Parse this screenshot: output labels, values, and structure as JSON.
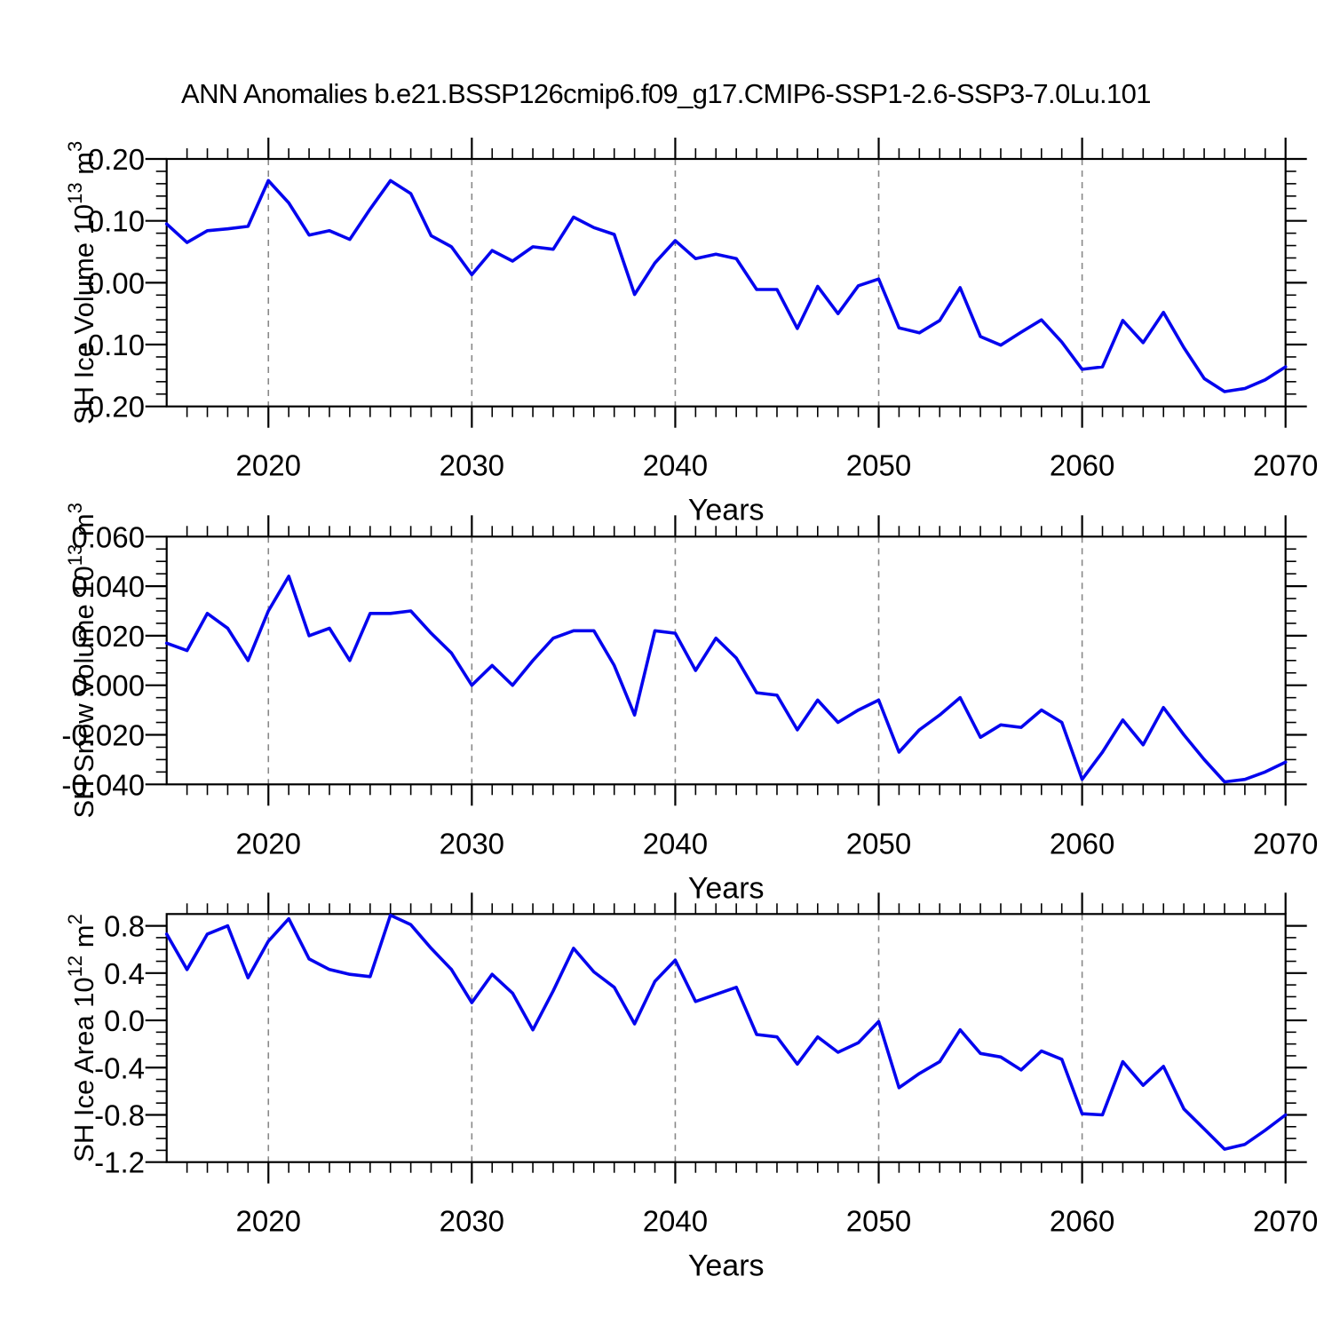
{
  "title": "ANN Anomalies b.e21.BSSP126cmip6.f09_g17.CMIP6-SSP1-2.6-SSP3-7.0Lu.101",
  "colors": {
    "line": "#0505EE",
    "grid": "#888888",
    "axis": "#000000"
  },
  "x_axis": {
    "label": "Years",
    "years_start": 2015,
    "years_end": 2070,
    "tick_values": [
      2020,
      2030,
      2040,
      2050,
      2060,
      2070
    ],
    "tick_labels": [
      "2020",
      "2030",
      "2040",
      "2050",
      "2060",
      "2070"
    ],
    "grid_years": [
      2020,
      2030,
      2040,
      2050,
      2060
    ],
    "years": [
      2015,
      2016,
      2017,
      2018,
      2019,
      2020,
      2021,
      2022,
      2023,
      2024,
      2025,
      2026,
      2027,
      2028,
      2029,
      2030,
      2031,
      2032,
      2033,
      2034,
      2035,
      2036,
      2037,
      2038,
      2039,
      2040,
      2041,
      2042,
      2043,
      2044,
      2045,
      2046,
      2047,
      2048,
      2049,
      2050,
      2051,
      2052,
      2053,
      2054,
      2055,
      2056,
      2057,
      2058,
      2059,
      2060,
      2061,
      2062,
      2063,
      2064,
      2065,
      2066,
      2067,
      2068,
      2069,
      2070
    ]
  },
  "chart_data": [
    {
      "type": "line",
      "name": "sh-ice-volume",
      "ylabel_text": "SH Ice Volume 10^13 m^3",
      "ylabel_parts": [
        {
          "t": "SH Ice Volume 10"
        },
        {
          "t": "13",
          "sup": true
        },
        {
          "t": " m"
        },
        {
          "t": "3",
          "sup": true
        }
      ],
      "ylim": [
        -0.2,
        0.2
      ],
      "ytick_values": [
        0.2,
        0.1,
        0.0,
        -0.1,
        -0.2
      ],
      "ytick_labels": [
        "0.20",
        "0.10",
        "0.00",
        "-0.10",
        "-0.20"
      ],
      "y_minor_step": 0.02,
      "values": [
        0.095,
        0.065,
        0.084,
        0.087,
        0.091,
        0.165,
        0.129,
        0.077,
        0.084,
        0.07,
        0.119,
        0.165,
        0.144,
        0.076,
        0.058,
        0.013,
        0.052,
        0.035,
        0.058,
        0.054,
        0.106,
        0.089,
        0.078,
        -0.019,
        0.032,
        0.068,
        0.039,
        0.046,
        0.039,
        -0.011,
        -0.011,
        -0.074,
        -0.006,
        -0.05,
        -0.005,
        0.006,
        -0.073,
        -0.081,
        -0.061,
        -0.008,
        -0.087,
        -0.101,
        -0.08,
        -0.06,
        -0.096,
        -0.14,
        -0.136,
        -0.061,
        -0.097,
        -0.048,
        -0.105,
        -0.155,
        -0.176,
        -0.171,
        -0.157,
        -0.136
      ]
    },
    {
      "type": "line",
      "name": "sh-snow-volume",
      "ylabel_text": "SH Snow Volume 10^13 m^3",
      "ylabel_parts": [
        {
          "t": "SH Snow Volume 10"
        },
        {
          "t": "13",
          "sup": true
        },
        {
          "t": " m"
        },
        {
          "t": "3",
          "sup": true
        }
      ],
      "ylim": [
        -0.04,
        0.06
      ],
      "ytick_values": [
        0.06,
        0.04,
        0.02,
        0.0,
        -0.02,
        -0.04
      ],
      "ytick_labels": [
        "0.060",
        "0.040",
        "0.020",
        "0.000",
        "-0.020",
        "-0.040"
      ],
      "y_minor_step": 0.005,
      "values": [
        0.017,
        0.014,
        0.029,
        0.023,
        0.01,
        0.03,
        0.044,
        0.02,
        0.023,
        0.01,
        0.029,
        0.029,
        0.03,
        0.021,
        0.013,
        0.0,
        0.008,
        0.0,
        0.01,
        0.019,
        0.022,
        0.022,
        0.008,
        -0.012,
        0.022,
        0.021,
        0.006,
        0.019,
        0.011,
        -0.003,
        -0.004,
        -0.018,
        -0.006,
        -0.015,
        -0.01,
        -0.006,
        -0.027,
        -0.018,
        -0.012,
        -0.005,
        -0.021,
        -0.016,
        -0.017,
        -0.01,
        -0.015,
        -0.038,
        -0.027,
        -0.014,
        -0.024,
        -0.009,
        -0.02,
        -0.03,
        -0.039,
        -0.038,
        -0.035,
        -0.031
      ]
    },
    {
      "type": "line",
      "name": "sh-ice-area",
      "ylabel_text": "SH Ice Area 10^12 m^2",
      "ylabel_parts": [
        {
          "t": "SH Ice Area 10"
        },
        {
          "t": "12",
          "sup": true
        },
        {
          "t": " m"
        },
        {
          "t": "2",
          "sup": true
        }
      ],
      "ylim": [
        -1.2,
        0.9
      ],
      "ytick_values": [
        0.8,
        0.4,
        0.0,
        -0.4,
        -0.8,
        -1.2
      ],
      "ytick_labels": [
        "0.8",
        "0.4",
        "0.0",
        "-0.4",
        "-0.8",
        "-1.2"
      ],
      "y_minor_step": 0.1,
      "values": [
        0.73,
        0.43,
        0.73,
        0.8,
        0.36,
        0.67,
        0.86,
        0.52,
        0.43,
        0.39,
        0.37,
        0.89,
        0.81,
        0.61,
        0.43,
        0.15,
        0.39,
        0.23,
        -0.08,
        0.25,
        0.61,
        0.41,
        0.28,
        -0.03,
        0.33,
        0.51,
        0.16,
        0.22,
        0.28,
        -0.12,
        -0.14,
        -0.37,
        -0.14,
        -0.27,
        -0.19,
        -0.01,
        -0.57,
        -0.45,
        -0.35,
        -0.08,
        -0.28,
        -0.31,
        -0.42,
        -0.26,
        -0.33,
        -0.79,
        -0.8,
        -0.35,
        -0.55,
        -0.39,
        -0.75,
        -0.92,
        -1.09,
        -1.05,
        -0.93,
        -0.8
      ]
    }
  ]
}
